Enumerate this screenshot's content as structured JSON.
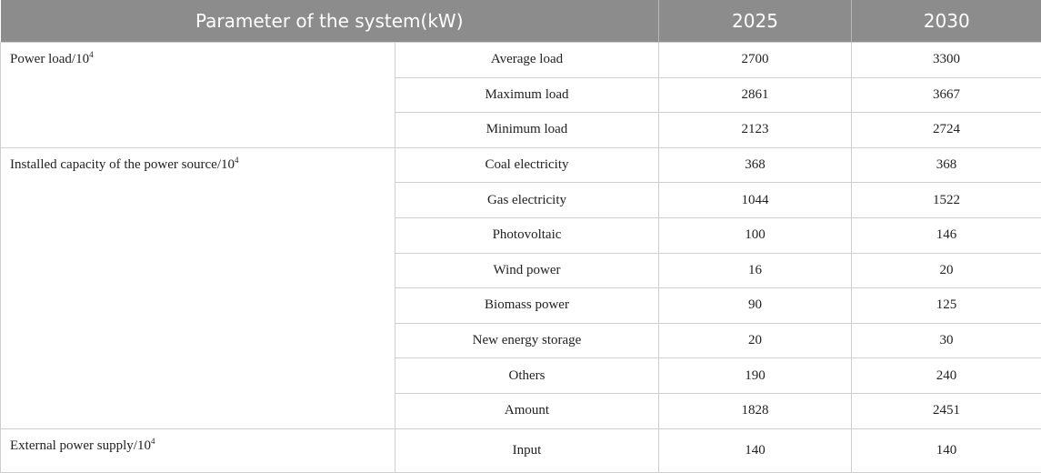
{
  "table": {
    "headers": [
      "Parameter of the system(kW)",
      "2025",
      "2030"
    ],
    "groups": [
      {
        "label": "Power load/10",
        "exponent": "4",
        "rows": [
          {
            "item": "Average load",
            "v2025": "2700",
            "v2030": "3300"
          },
          {
            "item": "Maximum load",
            "v2025": "2861",
            "v2030": "3667"
          },
          {
            "item": "Minimum load",
            "v2025": "2123",
            "v2030": "2724"
          }
        ]
      },
      {
        "label": "Installed capacity of the power source/10",
        "exponent": "4",
        "rows": [
          {
            "item": "Coal electricity",
            "v2025": "368",
            "v2030": "368"
          },
          {
            "item": "Gas electricity",
            "v2025": "1044",
            "v2030": "1522"
          },
          {
            "item": "Photovoltaic",
            "v2025": "100",
            "v2030": "146"
          },
          {
            "item": "Wind power",
            "v2025": "16",
            "v2030": "20"
          },
          {
            "item": "Biomass power",
            "v2025": "90",
            "v2030": "125"
          },
          {
            "item": "New energy storage",
            "v2025": "20",
            "v2030": "30"
          },
          {
            "item": "Others",
            "v2025": "190",
            "v2030": "240"
          },
          {
            "item": "Amount",
            "v2025": "1828",
            "v2030": "2451"
          }
        ]
      },
      {
        "label": "External power supply/10",
        "exponent": "4",
        "rows": [
          {
            "item": "Input",
            "v2025": "140",
            "v2030": "140"
          }
        ]
      }
    ]
  },
  "colors": {
    "header_bg": "#8c8c8c",
    "header_text": "#ffffff",
    "border": "#cfcfcf"
  }
}
